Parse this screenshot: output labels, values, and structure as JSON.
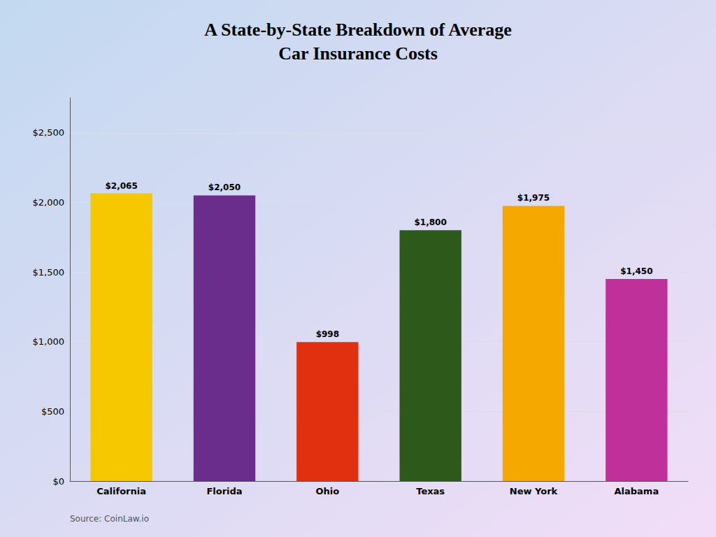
{
  "chart_data": {
    "type": "bar",
    "title": "A State-by-State Breakdown of Average\nCar Insurance Costs",
    "categories": [
      "California",
      "Florida",
      "Ohio",
      "Texas",
      "New York",
      "Alabama"
    ],
    "values": [
      2065,
      2050,
      998,
      1800,
      1975,
      1450
    ],
    "value_labels": [
      "$2,065",
      "$2,050",
      "$998",
      "$1,800",
      "$1,975",
      "$1,450"
    ],
    "colors": [
      "#F5C800",
      "#6B2D8B",
      "#E03010",
      "#2D5A1B",
      "#F5A800",
      "#C0309A"
    ],
    "ylim": [
      0,
      2750
    ],
    "yticks": [
      {
        "value": 0,
        "label": "$0"
      },
      {
        "value": 500,
        "label": "$500"
      },
      {
        "value": 1000,
        "label": "$1,000"
      },
      {
        "value": 1500,
        "label": "$1,500"
      },
      {
        "value": 2000,
        "label": "$2,000"
      },
      {
        "value": 2500,
        "label": "$2,500"
      }
    ],
    "grid": true,
    "data_labels": true,
    "annotations": [
      "Source: CoinLaw.io"
    ]
  }
}
